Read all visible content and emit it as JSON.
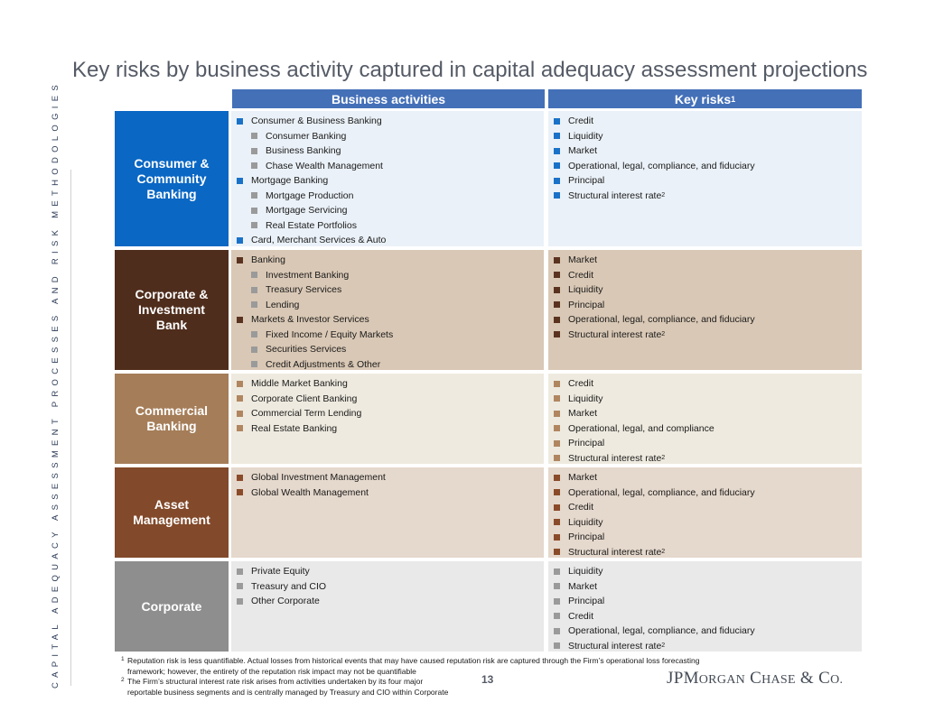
{
  "page_title": "Key risks by business activity captured in capital adequacy assessment projections",
  "side_label": "CAPITAL ADEQUACY ASSESSMENT PROCESSES AND RISK METHODOLOGIES",
  "headers": {
    "business": "Business activities",
    "risks": "Key risks",
    "risks_sup": "1"
  },
  "segments": [
    {
      "name": "Consumer & Community Banking",
      "colors": {
        "label_bg": "#0a67c4",
        "cell_bg": "#eaf1f8",
        "bullet": "#1a72c8"
      },
      "business": [
        {
          "text": "Consumer & Business Banking",
          "level": 0
        },
        {
          "text": "Consumer Banking",
          "level": 1
        },
        {
          "text": "Business Banking",
          "level": 1
        },
        {
          "text": "Chase Wealth Management",
          "level": 1
        },
        {
          "text": "Mortgage Banking",
          "level": 0
        },
        {
          "text": "Mortgage Production",
          "level": 1
        },
        {
          "text": "Mortgage Servicing",
          "level": 1
        },
        {
          "text": "Real Estate Portfolios",
          "level": 1
        },
        {
          "text": "Card, Merchant Services & Auto",
          "level": 0
        }
      ],
      "risks": [
        {
          "text": "Credit"
        },
        {
          "text": "Liquidity"
        },
        {
          "text": "Market"
        },
        {
          "text": "Operational, legal, compliance, and fiduciary"
        },
        {
          "text": "Principal"
        },
        {
          "text": "Structural interest rate",
          "sup": "2"
        }
      ]
    },
    {
      "name": "Corporate & Investment Bank",
      "colors": {
        "label_bg": "#4f2d1c",
        "cell_bg": "#d9c8b5",
        "bullet": "#5a3320"
      },
      "business": [
        {
          "text": "Banking",
          "level": 0
        },
        {
          "text": "Investment Banking",
          "level": 1
        },
        {
          "text": "Treasury Services",
          "level": 1
        },
        {
          "text": "Lending",
          "level": 1
        },
        {
          "text": "Markets & Investor Services",
          "level": 0
        },
        {
          "text": "Fixed Income / Equity Markets",
          "level": 1
        },
        {
          "text": "Securities Services",
          "level": 1
        },
        {
          "text": "Credit Adjustments & Other",
          "level": 1
        }
      ],
      "risks": [
        {
          "text": "Market"
        },
        {
          "text": "Credit"
        },
        {
          "text": "Liquidity"
        },
        {
          "text": "Principal"
        },
        {
          "text": "Operational, legal, compliance, and fiduciary"
        },
        {
          "text": "Structural interest rate",
          "sup": "2"
        }
      ]
    },
    {
      "name": "Commercial Banking",
      "colors": {
        "label_bg": "#a57d58",
        "cell_bg": "#eeeadf",
        "bullet": "#b08660"
      },
      "business": [
        {
          "text": "Middle Market Banking",
          "level": 0
        },
        {
          "text": "Corporate Client Banking",
          "level": 0
        },
        {
          "text": "Commercial Term Lending",
          "level": 0
        },
        {
          "text": "Real Estate Banking",
          "level": 0
        }
      ],
      "risks": [
        {
          "text": "Credit"
        },
        {
          "text": "Liquidity"
        },
        {
          "text": "Market"
        },
        {
          "text": "Operational, legal, and compliance"
        },
        {
          "text": "Principal"
        },
        {
          "text": "Structural interest rate",
          "sup": "2"
        }
      ]
    },
    {
      "name": "Asset Management",
      "colors": {
        "label_bg": "#82492a",
        "cell_bg": "#e5d8cc",
        "bullet": "#8a4b2a"
      },
      "business": [
        {
          "text": "Global Investment Management",
          "level": 0
        },
        {
          "text": "Global Wealth Management",
          "level": 0
        }
      ],
      "risks": [
        {
          "text": "Market"
        },
        {
          "text": "Operational, legal, compliance, and fiduciary"
        },
        {
          "text": "Credit"
        },
        {
          "text": "Liquidity"
        },
        {
          "text": "Principal"
        },
        {
          "text": "Structural interest rate",
          "sup": "2"
        }
      ]
    },
    {
      "name": "Corporate",
      "colors": {
        "label_bg": "#8e8e8e",
        "cell_bg": "#e9e9e9",
        "bullet": "#9a9a9a"
      },
      "business": [
        {
          "text": "Private Equity",
          "level": 0
        },
        {
          "text": "Treasury and CIO",
          "level": 0
        },
        {
          "text": "Other Corporate",
          "level": 0
        }
      ],
      "risks": [
        {
          "text": "Liquidity"
        },
        {
          "text": "Market"
        },
        {
          "text": "Principal"
        },
        {
          "text": "Credit"
        },
        {
          "text": "Operational, legal, compliance, and fiduciary"
        },
        {
          "text": "Structural interest rate",
          "sup": "2"
        }
      ]
    }
  ],
  "footnotes": [
    {
      "num": "1",
      "lines": [
        "Reputation risk is less quantifiable. Actual losses from historical events that may have caused reputation risk are captured through the Firm’s operational loss forecasting",
        "framework; however, the entirety of the reputation risk impact may not be quantifiable"
      ]
    },
    {
      "num": "2",
      "lines": [
        "The Firm’s structural interest rate risk arises from activities undertaken by its four major",
        "reportable business segments and is centrally managed by Treasury and CIO within Corporate"
      ]
    }
  ],
  "page_number": "13",
  "logo": {
    "jp": "JP",
    "m": "M",
    "organ": "ORGAN",
    "c": "C",
    "hase": "HASE",
    "amp": "&",
    "co_c": "C",
    "co_o": "O."
  }
}
